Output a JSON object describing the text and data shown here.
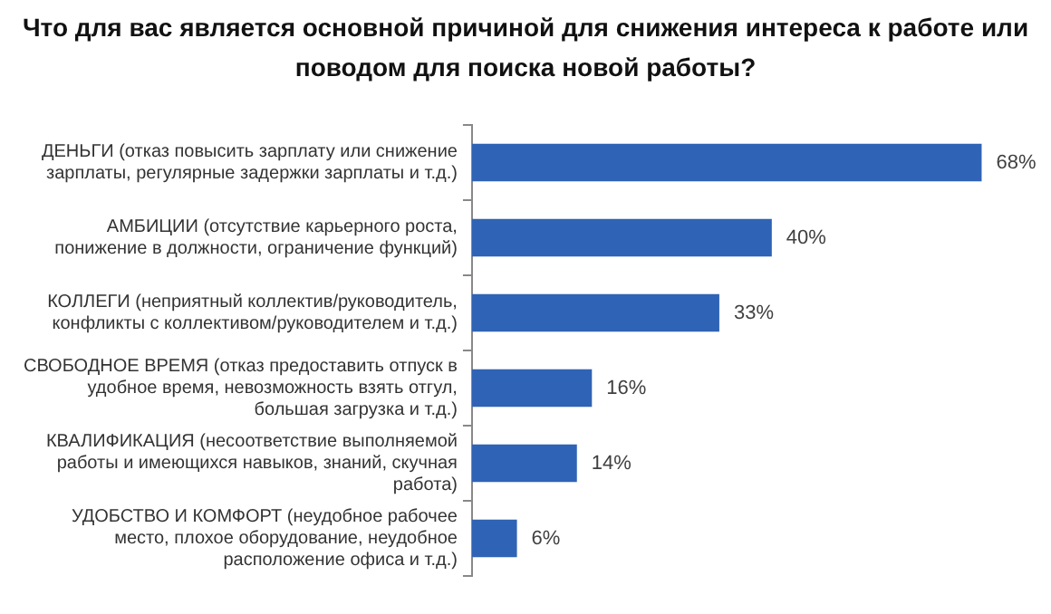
{
  "chart_data": {
    "type": "bar",
    "orientation": "horizontal",
    "title": "Что для вас является основной причиной для снижения интереса к работе или поводом для поиска новой работы?",
    "categories": [
      "ДЕНЬГИ (отказ повысить зарплату или снижение зарплаты, регулярные задержки зарплаты и т.д.)",
      "АМБИЦИИ (отсутствие карьерного роста, понижение в должности, ограничение функций)",
      "КОЛЛЕГИ (неприятный коллектив/руководитель, конфликты с коллективом/руководителем и т.д.)",
      "СВОБОДНОЕ ВРЕМЯ (отказ предоставить отпуск в удобное время, невозможность взять отгул, большая загрузка и т.д.)",
      "КВАЛИФИКАЦИЯ (несоответствие выполняемой работы и имеющихся навыков, знаний, скучная работа)",
      "УДОБСТВО И КОМФОРТ (неудобное рабочее место, плохое оборудование, неудобное расположение офиса и т.д.)"
    ],
    "values": [
      68,
      40,
      33,
      16,
      14,
      6
    ],
    "value_labels": [
      "68%",
      "40%",
      "33%",
      "16%",
      "14%",
      "6%"
    ],
    "color": "#2f63b5",
    "grid": false,
    "legend": false,
    "tick_labels": "y"
  }
}
